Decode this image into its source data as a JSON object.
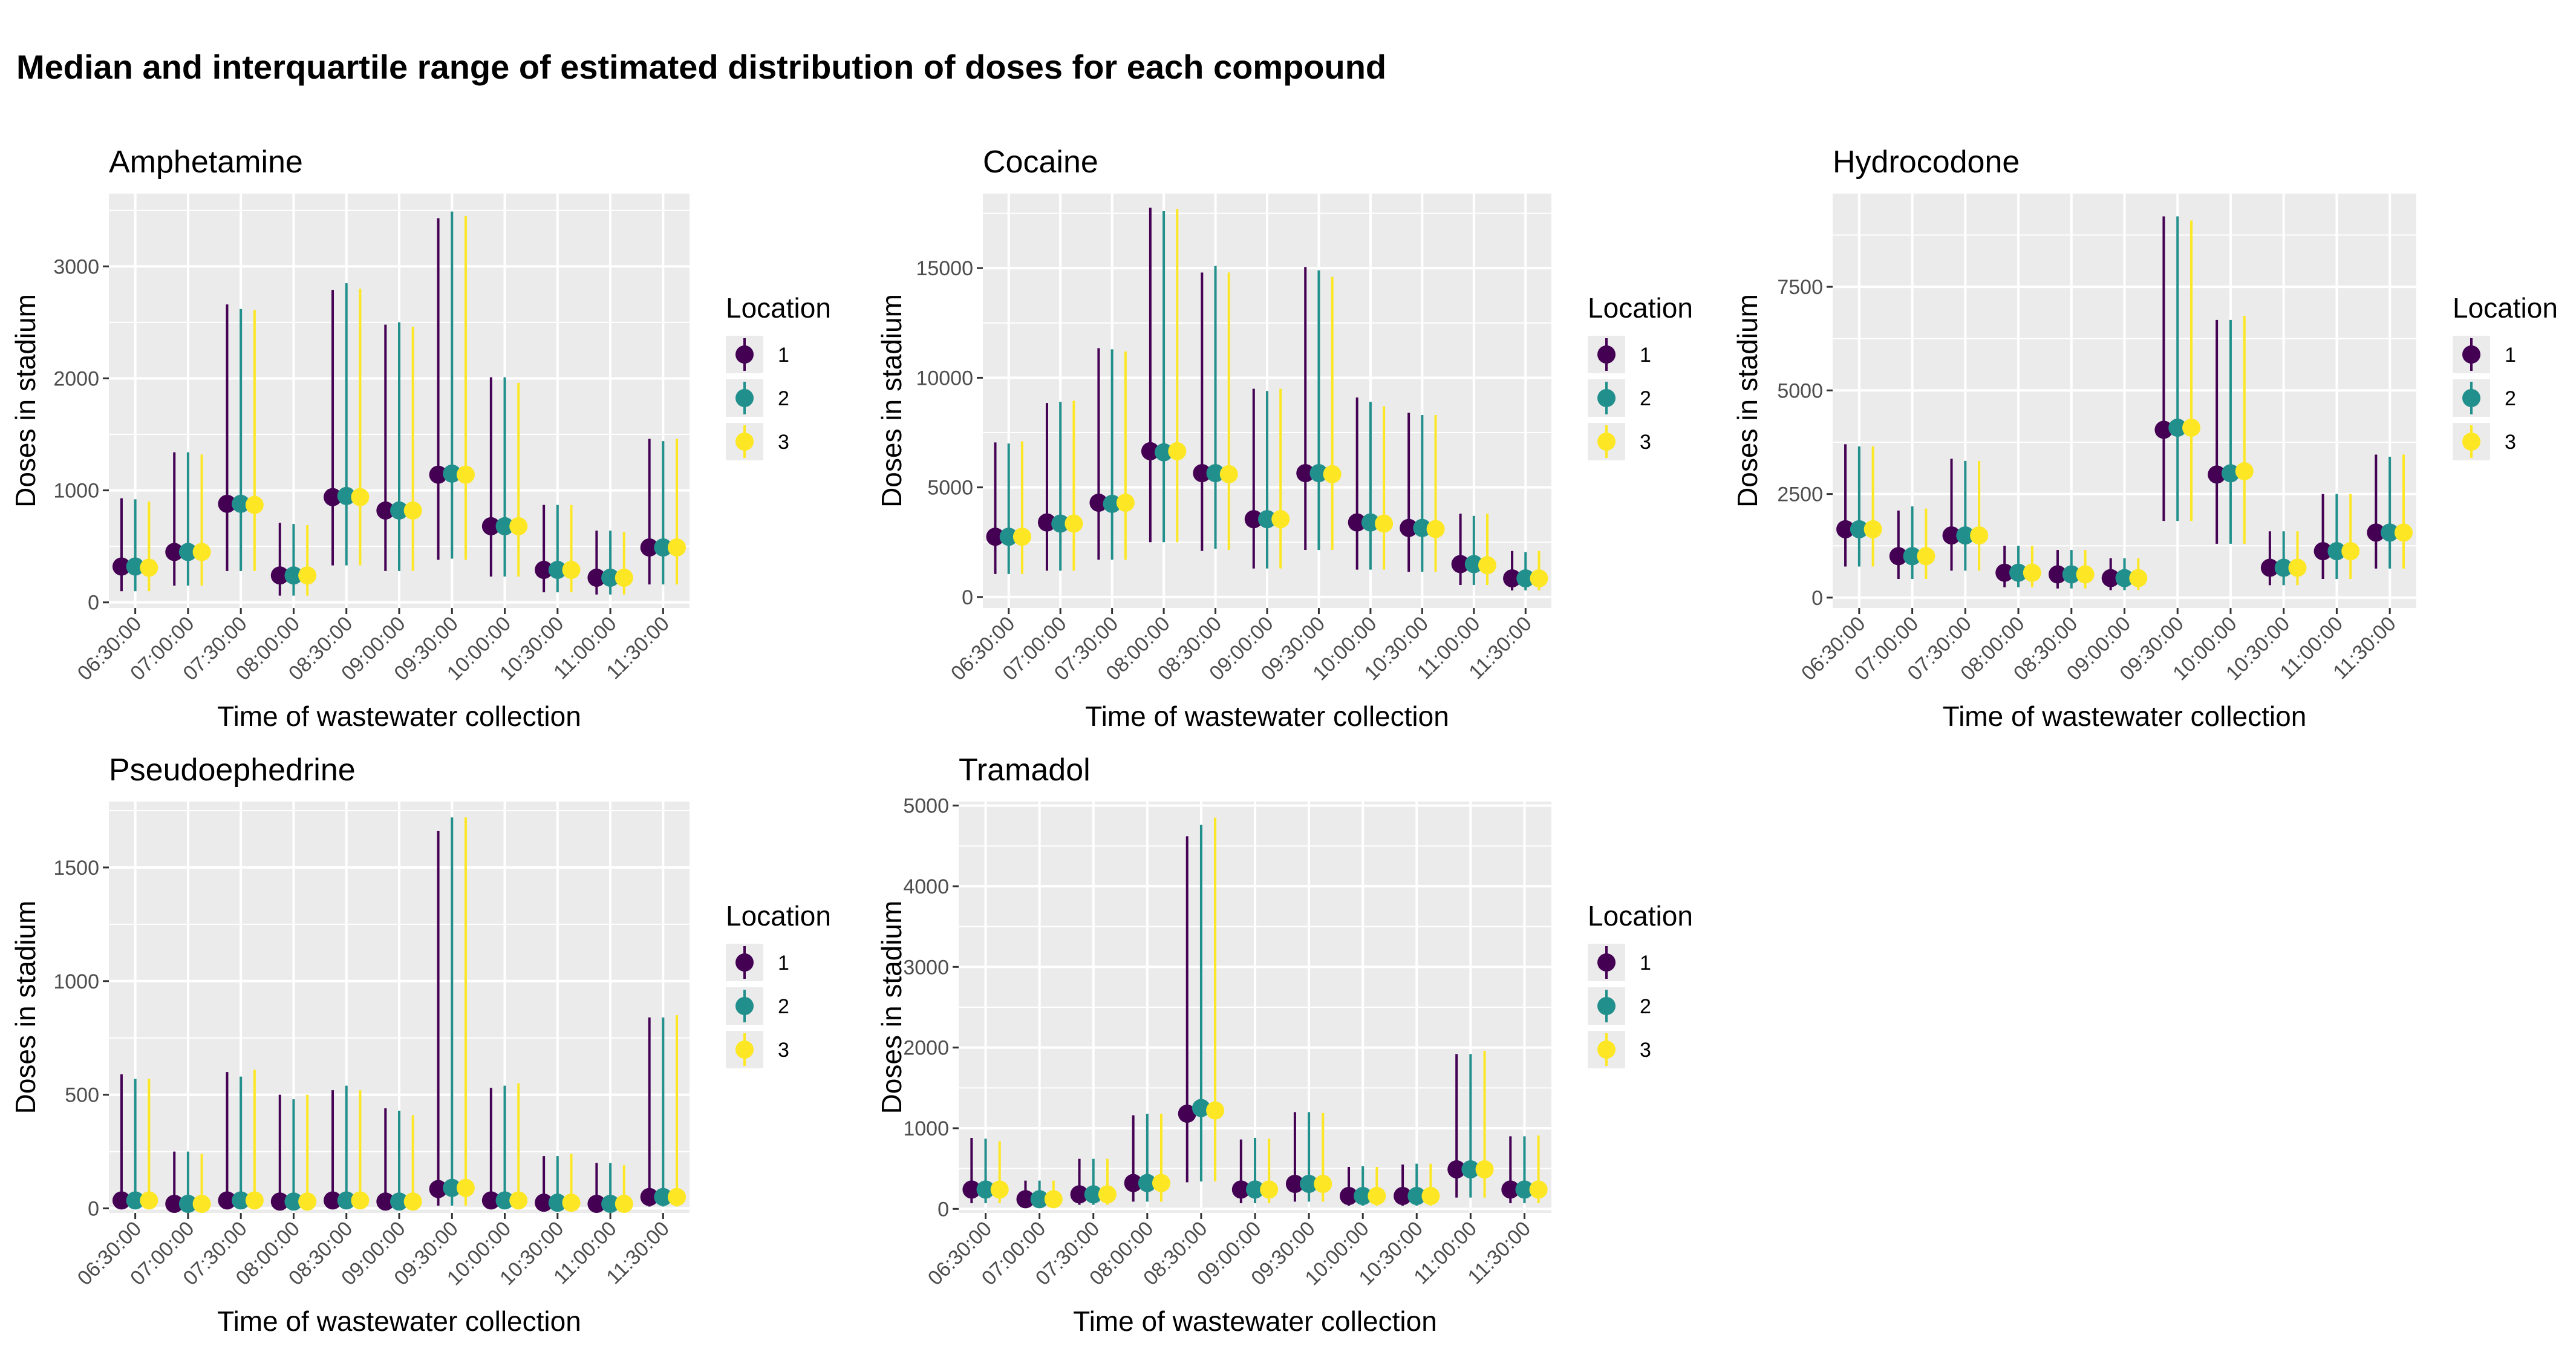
{
  "title": "Median and interquartile range of estimated distribution of doses for each compound",
  "colors": {
    "panel_bg": "#ebebeb",
    "grid": "#ffffff",
    "location_1": "#440154",
    "location_2": "#21908C",
    "location_3": "#FDE725"
  },
  "chart_data": [
    {
      "type": "pointrange",
      "title": "Amphetamine",
      "xlabel": "Time of wastewater collection",
      "ylabel": "Doses in stadium",
      "categories": [
        "06:30:00",
        "07:00:00",
        "07:30:00",
        "08:00:00",
        "08:30:00",
        "09:00:00",
        "09:30:00",
        "10:00:00",
        "10:30:00",
        "11:00:00",
        "11:30:00"
      ],
      "ylim": [
        -50,
        3650
      ],
      "yticks": [
        0,
        1000,
        2000,
        3000
      ],
      "legend": {
        "title": "Location",
        "position": "right",
        "labels": [
          "1",
          "2",
          "3"
        ]
      },
      "series": [
        {
          "name": "1",
          "median": [
            320,
            450,
            880,
            240,
            940,
            820,
            1140,
            680,
            290,
            220,
            490
          ],
          "low": [
            100,
            150,
            280,
            60,
            330,
            280,
            380,
            230,
            90,
            70,
            160
          ],
          "high": [
            930,
            1340,
            2660,
            710,
            2790,
            2480,
            3430,
            2010,
            870,
            640,
            1460
          ]
        },
        {
          "name": "2",
          "median": [
            320,
            450,
            880,
            240,
            950,
            820,
            1150,
            680,
            290,
            220,
            490
          ],
          "low": [
            100,
            150,
            280,
            60,
            330,
            280,
            390,
            230,
            90,
            70,
            160
          ],
          "high": [
            920,
            1340,
            2620,
            700,
            2850,
            2500,
            3490,
            2010,
            870,
            640,
            1440
          ]
        },
        {
          "name": "3",
          "median": [
            310,
            450,
            870,
            240,
            940,
            820,
            1140,
            680,
            290,
            220,
            490
          ],
          "low": [
            100,
            150,
            280,
            60,
            330,
            280,
            380,
            230,
            90,
            70,
            160
          ],
          "high": [
            900,
            1320,
            2610,
            690,
            2800,
            2460,
            3450,
            1960,
            870,
            630,
            1460
          ]
        }
      ]
    },
    {
      "type": "pointrange",
      "title": "Cocaine",
      "xlabel": "Time of wastewater collection",
      "ylabel": "Doses in stadium",
      "categories": [
        "06:30:00",
        "07:00:00",
        "07:30:00",
        "08:00:00",
        "08:30:00",
        "09:00:00",
        "09:30:00",
        "10:00:00",
        "10:30:00",
        "11:00:00",
        "11:30:00"
      ],
      "ylim": [
        -500,
        18400
      ],
      "yticks": [
        0,
        5000,
        10000,
        15000
      ],
      "legend": {
        "title": "Location",
        "position": "right",
        "labels": [
          "1",
          "2",
          "3"
        ]
      },
      "series": [
        {
          "name": "1",
          "median": [
            2750,
            3400,
            4300,
            6650,
            5650,
            3550,
            5650,
            3400,
            3150,
            1500,
            850
          ],
          "low": [
            1050,
            1200,
            1700,
            2500,
            2100,
            1300,
            2150,
            1250,
            1150,
            550,
            300
          ],
          "high": [
            7050,
            8850,
            11350,
            17750,
            14800,
            9500,
            15050,
            9100,
            8400,
            3800,
            2100
          ]
        },
        {
          "name": "2",
          "median": [
            2750,
            3350,
            4250,
            6600,
            5650,
            3550,
            5650,
            3400,
            3150,
            1500,
            850
          ],
          "low": [
            1050,
            1200,
            1700,
            2500,
            2200,
            1300,
            2150,
            1250,
            1150,
            550,
            300
          ],
          "high": [
            7000,
            8900,
            11300,
            17600,
            15100,
            9400,
            14900,
            8900,
            8300,
            3700,
            2050
          ]
        },
        {
          "name": "3",
          "median": [
            2750,
            3350,
            4300,
            6650,
            5600,
            3550,
            5600,
            3350,
            3100,
            1450,
            850
          ],
          "low": [
            1050,
            1200,
            1700,
            2500,
            2150,
            1300,
            2150,
            1250,
            1150,
            550,
            300
          ],
          "high": [
            7100,
            8950,
            11200,
            17700,
            14800,
            9500,
            14600,
            8700,
            8300,
            3800,
            2100
          ]
        }
      ]
    },
    {
      "type": "pointrange",
      "title": "Hydrocodone",
      "xlabel": "Time of wastewater collection",
      "ylabel": "Doses in stadium",
      "categories": [
        "06:30:00",
        "07:00:00",
        "07:30:00",
        "08:00:00",
        "08:30:00",
        "09:00:00",
        "09:30:00",
        "10:00:00",
        "10:30:00",
        "11:00:00",
        "11:30:00"
      ],
      "ylim": [
        -250,
        9750
      ],
      "yticks": [
        0,
        2500,
        5000,
        7500
      ],
      "legend": {
        "title": "Location",
        "position": "right",
        "labels": [
          "1",
          "2",
          "3"
        ]
      },
      "series": [
        {
          "name": "1",
          "median": [
            1650,
            1000,
            1500,
            600,
            560,
            470,
            4050,
            2970,
            720,
            1120,
            1570
          ],
          "low": [
            750,
            450,
            650,
            250,
            220,
            180,
            1850,
            1300,
            300,
            450,
            700
          ],
          "high": [
            3700,
            2100,
            3350,
            1250,
            1150,
            950,
            9200,
            6700,
            1600,
            2500,
            3450
          ]
        },
        {
          "name": "2",
          "median": [
            1650,
            1000,
            1500,
            600,
            560,
            470,
            4100,
            3000,
            720,
            1120,
            1570
          ],
          "low": [
            750,
            450,
            650,
            250,
            220,
            180,
            1850,
            1300,
            300,
            450,
            700
          ],
          "high": [
            3650,
            2200,
            3300,
            1250,
            1150,
            950,
            9200,
            6700,
            1600,
            2500,
            3400
          ]
        },
        {
          "name": "3",
          "median": [
            1650,
            1000,
            1500,
            600,
            560,
            470,
            4100,
            3050,
            720,
            1120,
            1570
          ],
          "low": [
            750,
            450,
            650,
            250,
            220,
            180,
            1850,
            1300,
            300,
            450,
            700
          ],
          "high": [
            3650,
            2150,
            3300,
            1250,
            1150,
            950,
            9100,
            6800,
            1600,
            2500,
            3450
          ]
        }
      ]
    },
    {
      "type": "pointrange",
      "title": "Pseudoephedrine",
      "xlabel": "Time of wastewater collection",
      "ylabel": "Doses in stadium",
      "categories": [
        "06:30:00",
        "07:00:00",
        "07:30:00",
        "08:00:00",
        "08:30:00",
        "09:00:00",
        "09:30:00",
        "10:00:00",
        "10:30:00",
        "11:00:00",
        "11:30:00"
      ],
      "ylim": [
        -20,
        1790
      ],
      "yticks": [
        0,
        500,
        1000,
        1500
      ],
      "legend": {
        "title": "Location",
        "position": "right",
        "labels": [
          "1",
          "2",
          "3"
        ]
      },
      "series": [
        {
          "name": "1",
          "median": [
            35,
            20,
            35,
            30,
            35,
            30,
            85,
            35,
            25,
            20,
            50
          ],
          "low": [
            5,
            3,
            5,
            5,
            5,
            5,
            12,
            5,
            3,
            3,
            8
          ],
          "high": [
            590,
            250,
            600,
            500,
            520,
            440,
            1660,
            530,
            230,
            200,
            840
          ]
        },
        {
          "name": "2",
          "median": [
            35,
            20,
            35,
            30,
            35,
            30,
            90,
            35,
            25,
            20,
            50
          ],
          "low": [
            5,
            3,
            5,
            5,
            5,
            5,
            12,
            5,
            3,
            3,
            8
          ],
          "high": [
            570,
            250,
            580,
            480,
            540,
            430,
            1720,
            540,
            230,
            200,
            840
          ]
        },
        {
          "name": "3",
          "median": [
            35,
            20,
            35,
            30,
            35,
            30,
            90,
            35,
            25,
            20,
            50
          ],
          "low": [
            5,
            3,
            5,
            5,
            5,
            5,
            12,
            5,
            3,
            3,
            8
          ],
          "high": [
            570,
            240,
            610,
            500,
            520,
            410,
            1720,
            550,
            240,
            190,
            850
          ]
        }
      ]
    },
    {
      "type": "pointrange",
      "title": "Tramadol",
      "xlabel": "Time of wastewater collection",
      "ylabel": "Doses in stadium",
      "categories": [
        "06:30:00",
        "07:00:00",
        "07:30:00",
        "08:00:00",
        "08:30:00",
        "09:00:00",
        "09:30:00",
        "10:00:00",
        "10:30:00",
        "11:00:00",
        "11:30:00"
      ],
      "ylim": [
        -50,
        5050
      ],
      "yticks": [
        0,
        1000,
        2000,
        3000,
        4000,
        5000
      ],
      "legend": {
        "title": "Location",
        "position": "right",
        "labels": [
          "1",
          "2",
          "3"
        ]
      },
      "series": [
        {
          "name": "1",
          "median": [
            240,
            120,
            180,
            320,
            1180,
            240,
            310,
            160,
            160,
            490,
            240
          ],
          "low": [
            70,
            30,
            50,
            90,
            330,
            70,
            90,
            40,
            40,
            140,
            70
          ],
          "high": [
            880,
            350,
            620,
            1160,
            4620,
            860,
            1200,
            520,
            550,
            1920,
            900
          ]
        },
        {
          "name": "2",
          "median": [
            240,
            120,
            180,
            320,
            1250,
            240,
            310,
            160,
            160,
            490,
            240
          ],
          "low": [
            70,
            30,
            50,
            90,
            340,
            70,
            90,
            40,
            40,
            140,
            70
          ],
          "high": [
            870,
            350,
            620,
            1180,
            4760,
            880,
            1200,
            530,
            560,
            1920,
            900
          ]
        },
        {
          "name": "3",
          "median": [
            240,
            120,
            180,
            320,
            1220,
            240,
            310,
            160,
            160,
            490,
            240
          ],
          "low": [
            70,
            30,
            50,
            90,
            340,
            70,
            90,
            40,
            40,
            140,
            70
          ],
          "high": [
            840,
            350,
            620,
            1180,
            4850,
            870,
            1190,
            520,
            560,
            1960,
            910
          ]
        }
      ]
    }
  ]
}
